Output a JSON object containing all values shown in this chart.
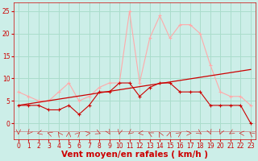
{
  "xlabel": "Vent moyen/en rafales ( km/h )",
  "background_color": "#cceee8",
  "grid_color": "#aaddcc",
  "x_ticks": [
    0,
    1,
    2,
    3,
    4,
    5,
    6,
    7,
    8,
    9,
    10,
    11,
    12,
    13,
    14,
    15,
    16,
    17,
    18,
    19,
    20,
    21,
    22,
    23
  ],
  "y_ticks": [
    0,
    5,
    10,
    15,
    20,
    25
  ],
  "ylim": [
    -3.5,
    27
  ],
  "xlim": [
    -0.5,
    23.5
  ],
  "wind_avg": [
    4,
    4,
    4,
    3,
    3,
    4,
    2,
    4,
    7,
    7,
    9,
    9,
    6,
    8,
    9,
    9,
    7,
    7,
    7,
    4,
    4,
    4,
    4,
    0
  ],
  "wind_gust": [
    7,
    6,
    5,
    5,
    7,
    9,
    5,
    6,
    8,
    9,
    9,
    25,
    9,
    19,
    24,
    19,
    22,
    22,
    20,
    13,
    7,
    6,
    6,
    4
  ],
  "wind_avg2": [
    4,
    4,
    4,
    3,
    2,
    4,
    1,
    4,
    6,
    7,
    8,
    9,
    6,
    8,
    9,
    9,
    6,
    6,
    7,
    4,
    4,
    4,
    4,
    0
  ],
  "line_avg_color": "#cc0000",
  "line_gust_color": "#ffaaaa",
  "line_avg2_color": "#cc0000",
  "trend_x": [
    0,
    23
  ],
  "trend_y": [
    4.0,
    12.0
  ],
  "trend_color": "#cc0000",
  "xlabel_color": "#cc0000",
  "tick_color": "#cc0000",
  "tick_fontsize": 5.5,
  "xlabel_fontsize": 7.5
}
